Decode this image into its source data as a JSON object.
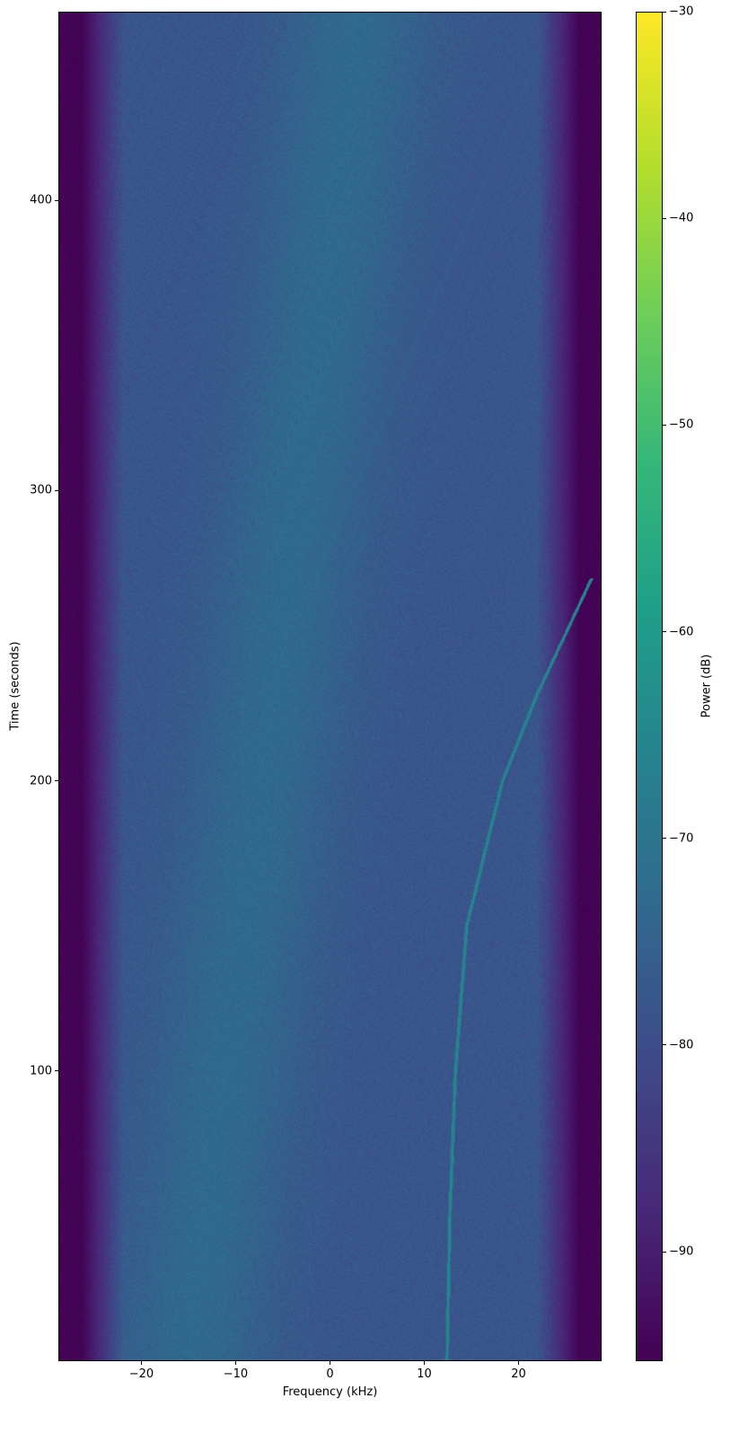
{
  "chart_data": {
    "type": "heatmap",
    "title": "",
    "xlabel": "Frequency (kHz)",
    "ylabel": "Time (seconds)",
    "xlim": [
      -28.8,
      28.8
    ],
    "ylim": [
      0,
      465
    ],
    "xticks": [
      -20,
      -10,
      0,
      10,
      20
    ],
    "xtick_labels": [
      "−20",
      "−10",
      "0",
      "10",
      "20"
    ],
    "yticks": [
      100,
      200,
      300,
      400
    ],
    "ytick_labels": [
      "100",
      "200",
      "300",
      "400"
    ],
    "colormap": "viridis",
    "colorbar": {
      "label": "Power (dB)",
      "range": [
        -95.3,
        -30
      ],
      "ticks": [
        -30,
        -40,
        -50,
        -60,
        -70,
        -80,
        -90
      ],
      "tick_labels": [
        "−30",
        "−40",
        "−50",
        "−60",
        "−70",
        "−80",
        "−90"
      ]
    },
    "background_level_db": -78,
    "edge_level_db": -95,
    "signal_trace": {
      "time_s": [
        0,
        50,
        100,
        150,
        200,
        230,
        270
      ],
      "freq_khz": [
        12.4,
        12.7,
        13.3,
        14.5,
        18.3,
        22.0,
        27.8
      ],
      "level_db": -66
    },
    "grid": false
  }
}
